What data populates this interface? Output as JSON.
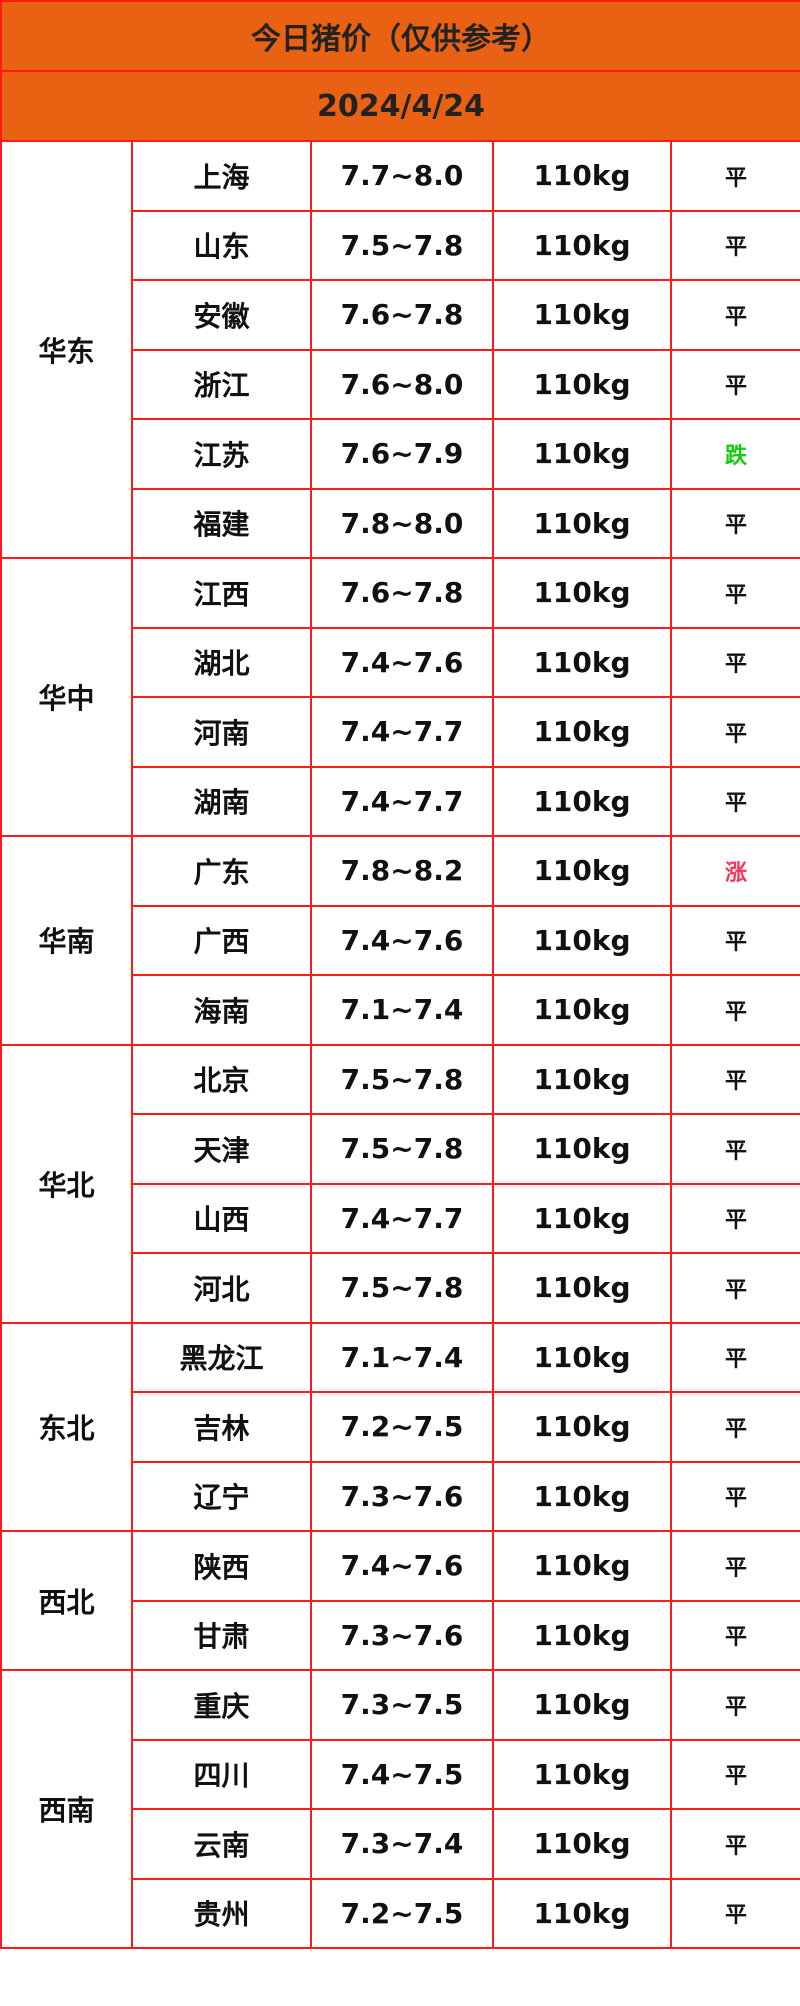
{
  "title": "今日猪价（仅供参考）",
  "date": "2024/4/24",
  "colors": {
    "header_bg": "#e96214",
    "border": "#ff1a1a",
    "up": "#ff3355",
    "down": "#11cc11",
    "flat": "#111111"
  },
  "regions": [
    {
      "name": "华东",
      "rows": [
        {
          "province": "上海",
          "price": "7.7~8.0",
          "weight": "110kg",
          "trend": "平"
        },
        {
          "province": "山东",
          "price": "7.5~7.8",
          "weight": "110kg",
          "trend": "平"
        },
        {
          "province": "安徽",
          "price": "7.6~7.8",
          "weight": "110kg",
          "trend": "平"
        },
        {
          "province": "浙江",
          "price": "7.6~8.0",
          "weight": "110kg",
          "trend": "平"
        },
        {
          "province": "江苏",
          "price": "7.6~7.9",
          "weight": "110kg",
          "trend": "跌"
        },
        {
          "province": "福建",
          "price": "7.8~8.0",
          "weight": "110kg",
          "trend": "平"
        }
      ]
    },
    {
      "name": "华中",
      "rows": [
        {
          "province": "江西",
          "price": "7.6~7.8",
          "weight": "110kg",
          "trend": "平"
        },
        {
          "province": "湖北",
          "price": "7.4~7.6",
          "weight": "110kg",
          "trend": "平"
        },
        {
          "province": "河南",
          "price": "7.4~7.7",
          "weight": "110kg",
          "trend": "平"
        },
        {
          "province": "湖南",
          "price": "7.4~7.7",
          "weight": "110kg",
          "trend": "平"
        }
      ]
    },
    {
      "name": "华南",
      "rows": [
        {
          "province": "广东",
          "price": "7.8~8.2",
          "weight": "110kg",
          "trend": "涨"
        },
        {
          "province": "广西",
          "price": "7.4~7.6",
          "weight": "110kg",
          "trend": "平"
        },
        {
          "province": "海南",
          "price": "7.1~7.4",
          "weight": "110kg",
          "trend": "平"
        }
      ]
    },
    {
      "name": "华北",
      "rows": [
        {
          "province": "北京",
          "price": "7.5~7.8",
          "weight": "110kg",
          "trend": "平"
        },
        {
          "province": "天津",
          "price": "7.5~7.8",
          "weight": "110kg",
          "trend": "平"
        },
        {
          "province": "山西",
          "price": "7.4~7.7",
          "weight": "110kg",
          "trend": "平"
        },
        {
          "province": "河北",
          "price": "7.5~7.8",
          "weight": "110kg",
          "trend": "平"
        }
      ]
    },
    {
      "name": "东北",
      "rows": [
        {
          "province": "黑龙江",
          "price": "7.1~7.4",
          "weight": "110kg",
          "trend": "平"
        },
        {
          "province": "吉林",
          "price": "7.2~7.5",
          "weight": "110kg",
          "trend": "平"
        },
        {
          "province": "辽宁",
          "price": "7.3~7.6",
          "weight": "110kg",
          "trend": "平"
        }
      ]
    },
    {
      "name": "西北",
      "rows": [
        {
          "province": "陕西",
          "price": "7.4~7.6",
          "weight": "110kg",
          "trend": "平"
        },
        {
          "province": "甘肃",
          "price": "7.3~7.6",
          "weight": "110kg",
          "trend": "平"
        }
      ]
    },
    {
      "name": "西南",
      "rows": [
        {
          "province": "重庆",
          "price": "7.3~7.5",
          "weight": "110kg",
          "trend": "平"
        },
        {
          "province": "四川",
          "price": "7.4~7.5",
          "weight": "110kg",
          "trend": "平"
        },
        {
          "province": "云南",
          "price": "7.3~7.4",
          "weight": "110kg",
          "trend": "平"
        },
        {
          "province": "贵州",
          "price": "7.2~7.5",
          "weight": "110kg",
          "trend": "平"
        }
      ]
    }
  ]
}
